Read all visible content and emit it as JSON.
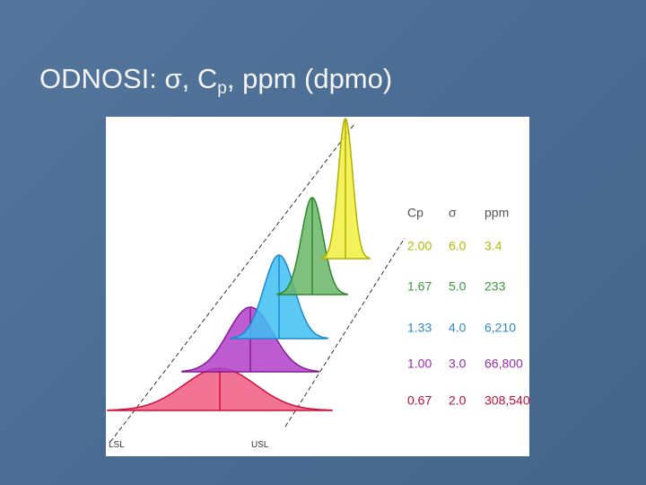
{
  "title": [
    "ODNOSI: ",
    "σ",
    ", C",
    "p",
    ", ppm (dpmo)"
  ],
  "limits": [
    "LSL",
    "USL"
  ],
  "table": {
    "header": [
      "Cp",
      "σ",
      "ppm"
    ],
    "rows": [
      [
        "2.00",
        "6.0",
        "3.4"
      ],
      [
        "1.67",
        "5.0",
        "233"
      ],
      [
        "1.33",
        "4.0",
        "6,210"
      ],
      [
        "1.00",
        "3.0",
        "66,800"
      ],
      [
        "0.67",
        "2.0",
        "308,540"
      ]
    ]
  }
}
